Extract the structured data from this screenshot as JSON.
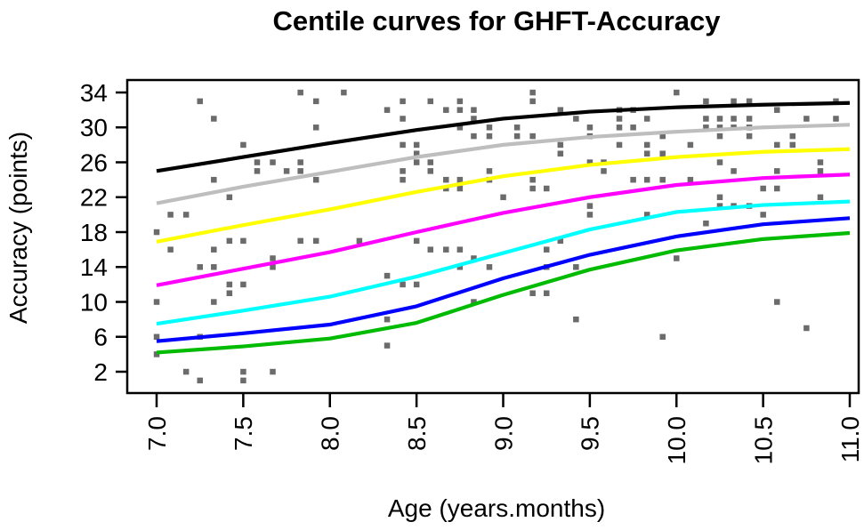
{
  "title": "Centile curves for GHFT-Accuracy",
  "chart_data": {
    "type": "line",
    "title": "Centile curves for GHFT-Accuracy",
    "xlabel": "Age (years.months)",
    "ylabel": "Accuracy (points)",
    "xlim": [
      6.83,
      11.05
    ],
    "ylim": [
      -0.5,
      35.4
    ],
    "grid": false,
    "legend": "none",
    "xticks": [
      7.0,
      7.5,
      8.0,
      8.5,
      9.0,
      9.5,
      10.0,
      10.5,
      11.0
    ],
    "xtick_labels": [
      "7.0",
      "7.5",
      "8.0",
      "8.5",
      "9.0",
      "9.5",
      "10.0",
      "10.5",
      "11.0"
    ],
    "yticks": [
      34,
      30,
      26,
      22,
      18,
      14,
      10,
      6,
      2
    ],
    "ytick_labels": [
      "34",
      "30",
      "26",
      "22",
      "18",
      "14",
      "10",
      "6",
      "2"
    ],
    "x": [
      7.0,
      7.5,
      8.0,
      8.5,
      9.0,
      9.5,
      10.0,
      10.5,
      11.0
    ],
    "series": [
      {
        "name": "black",
        "color": "#000000",
        "values": [
          25.0,
          26.6,
          28.2,
          29.7,
          31.0,
          31.8,
          32.3,
          32.6,
          32.8
        ]
      },
      {
        "name": "gray",
        "color": "#BEBEBE",
        "values": [
          21.3,
          23.2,
          24.9,
          26.6,
          28.0,
          28.9,
          29.5,
          30.0,
          30.3
        ]
      },
      {
        "name": "yellow",
        "color": "#FFFF00",
        "values": [
          16.9,
          18.8,
          20.6,
          22.6,
          24.4,
          25.7,
          26.6,
          27.2,
          27.5
        ]
      },
      {
        "name": "magenta",
        "color": "#FF00FF",
        "values": [
          11.9,
          13.8,
          15.7,
          18.0,
          20.2,
          22.0,
          23.4,
          24.2,
          24.6
        ]
      },
      {
        "name": "cyan",
        "color": "#00FFFF",
        "values": [
          7.5,
          9.0,
          10.6,
          12.9,
          15.6,
          18.3,
          20.3,
          21.1,
          21.5
        ]
      },
      {
        "name": "blue",
        "color": "#0000FF",
        "values": [
          5.5,
          6.4,
          7.4,
          9.5,
          12.7,
          15.4,
          17.5,
          18.9,
          19.6
        ]
      },
      {
        "name": "green",
        "color": "#00BB00",
        "values": [
          4.2,
          4.9,
          5.8,
          7.6,
          10.8,
          13.7,
          15.9,
          17.2,
          17.9
        ]
      }
    ],
    "scatter": {
      "marker": "square",
      "color": "#6B6B6B",
      "points": [
        [
          7.25,
          33
        ],
        [
          7.83,
          34
        ],
        [
          8.08,
          34
        ],
        [
          7.92,
          33
        ],
        [
          7.33,
          31
        ],
        [
          7.92,
          30
        ],
        [
          7.5,
          28
        ],
        [
          7.58,
          26
        ],
        [
          7.58,
          25
        ],
        [
          7.67,
          26
        ],
        [
          7.75,
          25
        ],
        [
          7.83,
          26
        ],
        [
          7.83,
          25
        ],
        [
          7.92,
          24
        ],
        [
          7.33,
          24
        ],
        [
          7.42,
          22
        ],
        [
          7.08,
          20
        ],
        [
          7.17,
          20
        ],
        [
          7.0,
          18
        ],
        [
          7.08,
          16
        ],
        [
          7.33,
          16
        ],
        [
          7.42,
          17
        ],
        [
          7.5,
          17
        ],
        [
          7.83,
          17
        ],
        [
          7.92,
          17
        ],
        [
          8.17,
          17
        ],
        [
          7.25,
          14
        ],
        [
          7.33,
          14
        ],
        [
          7.67,
          15
        ],
        [
          7.67,
          14
        ],
        [
          7.42,
          12
        ],
        [
          7.5,
          12
        ],
        [
          7.42,
          11
        ],
        [
          7.0,
          10
        ],
        [
          7.33,
          10
        ],
        [
          7.0,
          6
        ],
        [
          7.25,
          6
        ],
        [
          7.0,
          4
        ],
        [
          7.17,
          2
        ],
        [
          7.25,
          1
        ],
        [
          7.5,
          2
        ],
        [
          7.5,
          1
        ],
        [
          7.67,
          2
        ],
        [
          9.17,
          34
        ],
        [
          9.17,
          33
        ],
        [
          8.42,
          33
        ],
        [
          8.58,
          33
        ],
        [
          8.75,
          33
        ],
        [
          8.75,
          32
        ],
        [
          8.33,
          32
        ],
        [
          8.67,
          32
        ],
        [
          8.83,
          32
        ],
        [
          9.33,
          32
        ],
        [
          8.42,
          31
        ],
        [
          8.83,
          31
        ],
        [
          8.92,
          30
        ],
        [
          8.75,
          30
        ],
        [
          9.08,
          30
        ],
        [
          9.5,
          30
        ],
        [
          9.5,
          29
        ],
        [
          8.42,
          28
        ],
        [
          8.5,
          28
        ],
        [
          8.83,
          29
        ],
        [
          8.92,
          29
        ],
        [
          9.08,
          29
        ],
        [
          9.17,
          29
        ],
        [
          9.33,
          28
        ],
        [
          9.33,
          27
        ],
        [
          9.42,
          31
        ],
        [
          9.5,
          26
        ],
        [
          9.58,
          26
        ],
        [
          9.58,
          25
        ],
        [
          8.58,
          26
        ],
        [
          8.5,
          27
        ],
        [
          8.5,
          26
        ],
        [
          8.42,
          25
        ],
        [
          8.42,
          24
        ],
        [
          8.58,
          25
        ],
        [
          8.67,
          24
        ],
        [
          8.67,
          23
        ],
        [
          8.75,
          24
        ],
        [
          8.75,
          23
        ],
        [
          8.92,
          25
        ],
        [
          8.92,
          24
        ],
        [
          9.0,
          22
        ],
        [
          9.17,
          24
        ],
        [
          9.17,
          23
        ],
        [
          9.25,
          23
        ],
        [
          9.5,
          21
        ],
        [
          9.5,
          20
        ],
        [
          8.5,
          17
        ],
        [
          8.58,
          16
        ],
        [
          8.67,
          16
        ],
        [
          8.75,
          16
        ],
        [
          8.83,
          15
        ],
        [
          8.75,
          14
        ],
        [
          8.92,
          14
        ],
        [
          8.33,
          13
        ],
        [
          8.42,
          12
        ],
        [
          8.5,
          12
        ],
        [
          9.25,
          16
        ],
        [
          9.33,
          17
        ],
        [
          9.25,
          14
        ],
        [
          9.42,
          14
        ],
        [
          9.17,
          11
        ],
        [
          9.25,
          11
        ],
        [
          8.83,
          10
        ],
        [
          8.33,
          8
        ],
        [
          9.42,
          8
        ],
        [
          8.33,
          5
        ],
        [
          10.0,
          34
        ],
        [
          10.92,
          33
        ],
        [
          10.17,
          33
        ],
        [
          10.33,
          33
        ],
        [
          10.42,
          33
        ],
        [
          9.75,
          32
        ],
        [
          9.67,
          32
        ],
        [
          10.58,
          32
        ],
        [
          9.83,
          31
        ],
        [
          9.67,
          31
        ],
        [
          10.17,
          31
        ],
        [
          10.25,
          31
        ],
        [
          10.33,
          31
        ],
        [
          10.42,
          31
        ],
        [
          10.75,
          31
        ],
        [
          10.92,
          31
        ],
        [
          9.67,
          30
        ],
        [
          9.75,
          30
        ],
        [
          10.17,
          30
        ],
        [
          10.25,
          30
        ],
        [
          10.33,
          30
        ],
        [
          10.42,
          30
        ],
        [
          9.92,
          29
        ],
        [
          10.25,
          29
        ],
        [
          10.42,
          29
        ],
        [
          10.67,
          29
        ],
        [
          9.67,
          28
        ],
        [
          9.83,
          28
        ],
        [
          10.08,
          28
        ],
        [
          10.58,
          28
        ],
        [
          10.67,
          28
        ],
        [
          9.83,
          27
        ],
        [
          9.92,
          27
        ],
        [
          10.25,
          26
        ],
        [
          10.83,
          26
        ],
        [
          10.33,
          25
        ],
        [
          10.58,
          25
        ],
        [
          10.83,
          25
        ],
        [
          9.75,
          24
        ],
        [
          9.83,
          24
        ],
        [
          9.92,
          24
        ],
        [
          10.08,
          24
        ],
        [
          10.5,
          23
        ],
        [
          10.58,
          23
        ],
        [
          10.25,
          22
        ],
        [
          10.42,
          21
        ],
        [
          10.25,
          21
        ],
        [
          10.33,
          21
        ],
        [
          10.83,
          22
        ],
        [
          9.83,
          20
        ],
        [
          10.5,
          20
        ],
        [
          10.17,
          19
        ],
        [
          10.0,
          15
        ],
        [
          10.58,
          10
        ],
        [
          10.75,
          7
        ],
        [
          9.92,
          6
        ]
      ]
    }
  }
}
